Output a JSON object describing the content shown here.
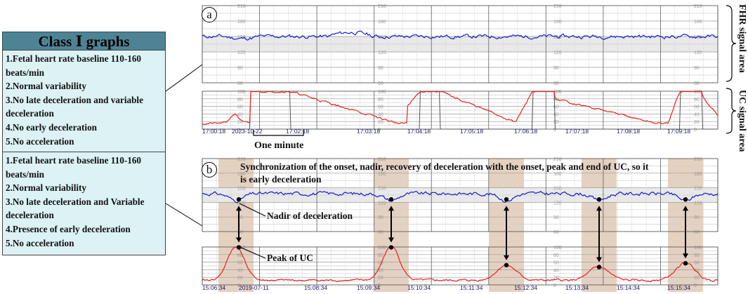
{
  "legend": {
    "title": "Class Ⅰ graphs",
    "group1": [
      "1.Fetal heart rate baseline 110-160 beats/min",
      "2.Normal variability",
      "3.No late deceleration and variable deceleration",
      "4.No early deceleration",
      "5.No acceleration"
    ],
    "group2": [
      "1.Fetal heart rate baseline 110-160 beats/min",
      "2.Normal variability",
      "3.No late deceleration and Variable deceleration",
      "4.Presence of early deceleration",
      "5.No acceleration"
    ]
  },
  "panel_a": {
    "marker": "a",
    "fhr_area_label": "FHR signal area",
    "uc_area_label": "UC signal area",
    "one_minute_label": "One minute",
    "times": [
      "17:00:18",
      "17:02:18",
      "17:03:18",
      "17:04:18",
      "17:05:18",
      "17:06:18",
      "17:07:18",
      "17:08:18",
      "17:09:18"
    ],
    "date": "2023-10-22",
    "fhr_scale": [
      "210",
      "180",
      "150",
      "120",
      "90",
      "60"
    ],
    "uc_scale": [
      "100",
      "80",
      "60",
      "40",
      "20",
      "0"
    ]
  },
  "panel_b": {
    "marker": "b",
    "sync_text_line1": "Synchronization of the onset, nadir, recovery of deceleration with the onset, peak and end of UC, so it",
    "sync_text_line2": "is early deceleration",
    "nadir_label": "Nadir of deceleration",
    "peak_label": "Peak of UC",
    "times": [
      "15:06:34",
      "15:08:34",
      "15:09:34",
      "15:10:34",
      "15:11:34",
      "15:12:34",
      "15:13:34",
      "15:14:34",
      "15:15:34"
    ],
    "date": "2019-07-11",
    "fhr_scale": [
      "210",
      "180",
      "150",
      "120",
      "90",
      "60"
    ],
    "uc_scale": [
      "100",
      "80",
      "60",
      "40",
      "20",
      "0"
    ]
  },
  "colors": {
    "fhr_trace": "#1a1acc",
    "uc_trace": "#e8231c",
    "uc_saturated": "#555555",
    "highlight_band": "#dcc1ab",
    "legend_title_bg": "#4e8395",
    "legend_box_bg": "#dcf2f4"
  }
}
